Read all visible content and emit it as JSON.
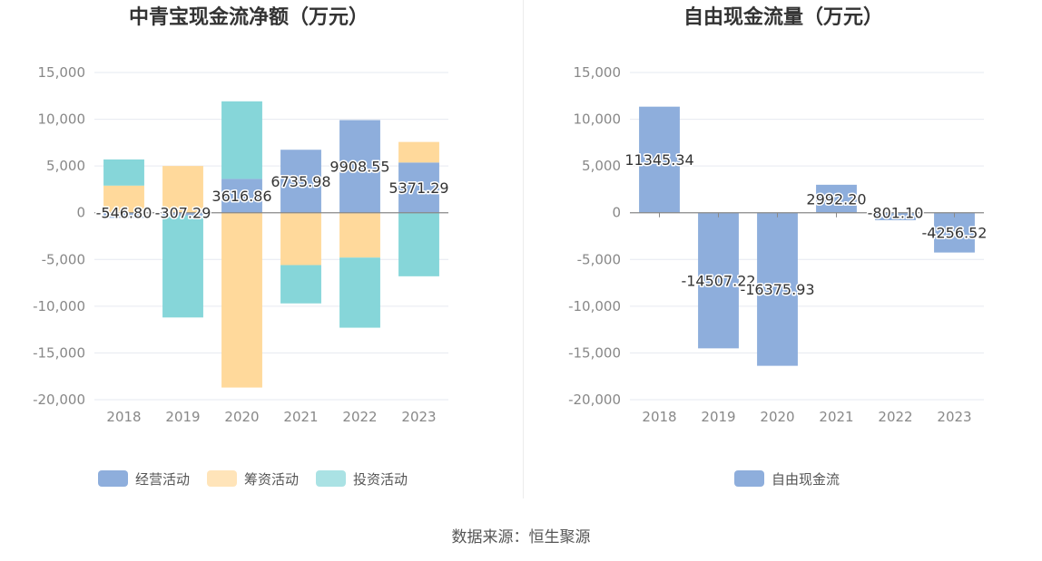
{
  "source_text": "数据来源：恒生聚源",
  "colors": {
    "operating": "#8eaedc",
    "financing": "#ffd99b",
    "investing": "#86d6d9",
    "fcf": "#8eaedc",
    "grid": "#e6e9f0",
    "axis_text": "#888888",
    "zero_line": "#888888"
  },
  "chart_data": [
    {
      "type": "bar",
      "stacked": true,
      "title": "中青宝现金流净额（万元）",
      "categories": [
        "2018",
        "2019",
        "2020",
        "2021",
        "2022",
        "2023"
      ],
      "ylim": [
        -20000,
        15000
      ],
      "yticks": [
        15000,
        10000,
        5000,
        0,
        -5000,
        -10000,
        -15000,
        -20000
      ],
      "ytick_labels": [
        "15,000",
        "10,000",
        "5,000",
        "0",
        "-5,000",
        "-10,000",
        "-15,000",
        "-20,000"
      ],
      "grid": true,
      "legend_position": "bottom",
      "series": [
        {
          "name": "经营活动",
          "color_key": "operating",
          "values": [
            -546.8,
            -307.29,
            3616.86,
            6735.98,
            9908.55,
            5371.29
          ]
        },
        {
          "name": "筹资活动",
          "color_key": "financing",
          "values": [
            2900,
            5000,
            -18700,
            -5600,
            -4800,
            2200
          ]
        },
        {
          "name": "投资活动",
          "color_key": "investing",
          "values": [
            2800,
            -10900,
            8300,
            -4100,
            -7500,
            -6800
          ]
        }
      ],
      "labels": [
        "-546.80",
        "-307.29",
        "3616.86",
        "6735.98",
        "9908.55",
        "5371.29"
      ]
    },
    {
      "type": "bar",
      "stacked": false,
      "title": "自由现金流量（万元）",
      "categories": [
        "2018",
        "2019",
        "2020",
        "2021",
        "2022",
        "2023"
      ],
      "ylim": [
        -20000,
        15000
      ],
      "yticks": [
        15000,
        10000,
        5000,
        0,
        -5000,
        -10000,
        -15000,
        -20000
      ],
      "ytick_labels": [
        "15,000",
        "10,000",
        "5,000",
        "0",
        "-5,000",
        "-10,000",
        "-15,000",
        "-20,000"
      ],
      "grid": true,
      "legend_position": "bottom",
      "series": [
        {
          "name": "自由现金流",
          "color_key": "fcf",
          "values": [
            11345.34,
            -14507.22,
            -16375.93,
            2992.2,
            -801.1,
            -4256.52
          ]
        }
      ],
      "labels": [
        "11345.34",
        "-14507.22",
        "-16375.93",
        "2992.20",
        "-801.10",
        "-4256.52"
      ]
    }
  ]
}
